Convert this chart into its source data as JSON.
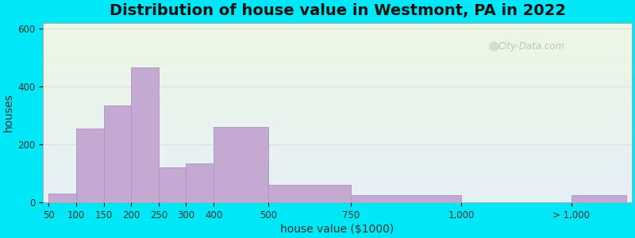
{
  "title": "Distribution of house value in Westmont, PA in 2022",
  "xlabel": "house value ($1000)",
  "ylabel": "houses",
  "bar_color": "#c4aad2",
  "bar_edgecolor": "#b090c0",
  "background_outer": "#00e8f8",
  "ylim": [
    0,
    620
  ],
  "yticks": [
    0,
    200,
    400,
    600
  ],
  "title_fontsize": 14,
  "axis_label_fontsize": 10,
  "tick_fontsize": 8.5,
  "watermark_text": "City-Data.com",
  "tick_positions": [
    0,
    1,
    2,
    3,
    4,
    5,
    6,
    8,
    11,
    15,
    19
  ],
  "tick_labels": [
    "50",
    "100",
    "150",
    "200",
    "250",
    "300",
    "400",
    "500",
    "750",
    "1,000",
    "> 1,000"
  ],
  "bar_lefts": [
    0,
    1,
    2,
    3,
    4,
    5,
    6,
    8,
    11,
    19
  ],
  "bar_widths": [
    1,
    1,
    1,
    1,
    1,
    1,
    2,
    3,
    4,
    2
  ],
  "bar_heights": [
    30,
    255,
    335,
    465,
    120,
    135,
    260,
    60,
    25,
    25
  ]
}
